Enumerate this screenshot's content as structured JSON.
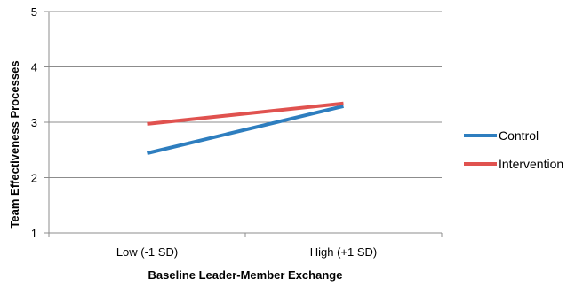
{
  "chart_data": {
    "type": "line",
    "title": "",
    "xlabel": "Baseline Leader-Member Exchange",
    "ylabel": "Team Effectiveness Processes",
    "categories": [
      "Low (-1 SD)",
      "High (+1 SD)"
    ],
    "ylim": [
      1,
      5
    ],
    "yticks": [
      1,
      2,
      3,
      4,
      5
    ],
    "grid": true,
    "legend_position": "right",
    "series": [
      {
        "name": "Control",
        "values": [
          2.44,
          3.29
        ],
        "color": "#2e7ebf"
      },
      {
        "name": "Intervention",
        "values": [
          2.97,
          3.34
        ],
        "color": "#e0524f"
      }
    ]
  }
}
